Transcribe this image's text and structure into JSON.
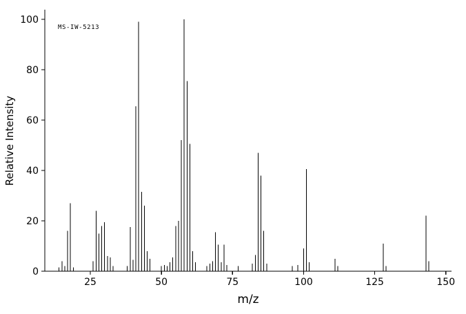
{
  "page": {
    "background": "#ffffff",
    "foreground": "#000000"
  },
  "chart_data": {
    "type": "bar",
    "variant": "mass-spectrum-stick-plot",
    "title": "",
    "annotation": "MS-IW-5213",
    "xlabel": "m/z",
    "ylabel": "Relative Intensity",
    "xlim": [
      9,
      152
    ],
    "ylim": [
      0,
      100
    ],
    "xticks": [
      25,
      50,
      75,
      100,
      125,
      150
    ],
    "yticks": [
      0,
      20,
      40,
      60,
      80,
      100
    ],
    "grid": false,
    "legend": false,
    "line_color": "#000000",
    "peaks": [
      [
        14,
        1.5
      ],
      [
        15,
        4
      ],
      [
        16,
        2
      ],
      [
        17,
        16
      ],
      [
        18,
        27
      ],
      [
        19,
        1.5
      ],
      [
        26,
        4
      ],
      [
        27,
        24
      ],
      [
        28,
        15
      ],
      [
        29,
        18
      ],
      [
        30,
        19.5
      ],
      [
        31,
        6
      ],
      [
        32,
        5.5
      ],
      [
        33,
        2
      ],
      [
        38,
        2
      ],
      [
        39,
        17.5
      ],
      [
        40,
        4.5
      ],
      [
        41,
        65.5
      ],
      [
        42,
        99
      ],
      [
        43,
        31.5
      ],
      [
        44,
        26
      ],
      [
        45,
        8
      ],
      [
        46,
        5
      ],
      [
        50,
        2
      ],
      [
        51,
        2.5
      ],
      [
        52,
        2
      ],
      [
        53,
        3.5
      ],
      [
        54,
        5.5
      ],
      [
        55,
        18
      ],
      [
        56,
        20
      ],
      [
        57,
        52
      ],
      [
        58,
        100
      ],
      [
        59,
        75.5
      ],
      [
        60,
        50.5
      ],
      [
        61,
        8
      ],
      [
        62,
        3.5
      ],
      [
        66,
        2
      ],
      [
        67,
        3
      ],
      [
        68,
        4
      ],
      [
        69,
        15.5
      ],
      [
        70,
        10.5
      ],
      [
        71,
        3.5
      ],
      [
        72,
        10.5
      ],
      [
        73,
        2.5
      ],
      [
        77,
        2
      ],
      [
        82,
        3
      ],
      [
        83,
        6.5
      ],
      [
        84,
        47
      ],
      [
        85,
        38
      ],
      [
        86,
        16
      ],
      [
        87,
        3
      ],
      [
        96,
        2
      ],
      [
        98,
        2.5
      ],
      [
        100,
        9
      ],
      [
        101,
        40.5
      ],
      [
        102,
        3.5
      ],
      [
        111,
        5
      ],
      [
        112,
        2
      ],
      [
        128,
        11
      ],
      [
        129,
        2
      ],
      [
        143,
        22
      ],
      [
        144,
        4
      ]
    ]
  }
}
